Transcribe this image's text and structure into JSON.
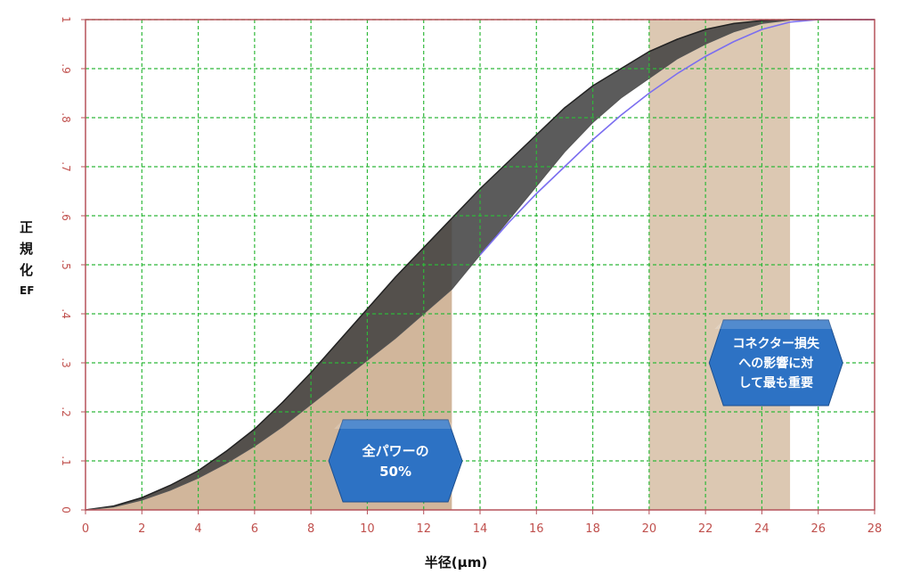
{
  "chart_data": {
    "type": "area",
    "xlabel": "半径(µm)",
    "ylabel_lines": [
      "正",
      "規",
      "化",
      "EF"
    ],
    "xlim": [
      0,
      28
    ],
    "ylim": [
      0,
      1
    ],
    "x_ticks": [
      "0",
      "2",
      "4",
      "6",
      "8",
      "10",
      "12",
      "14",
      "16",
      "18",
      "20",
      "22",
      "24",
      "26",
      "28"
    ],
    "y_ticks": [
      "0",
      ".1",
      ".2",
      ".3",
      ".4",
      ".5",
      ".6",
      ".7",
      ".8",
      ".9",
      "1"
    ],
    "grid": true,
    "series": [
      {
        "x": [
          0,
          1,
          2,
          3,
          4,
          5,
          6,
          7,
          8,
          9,
          10,
          11,
          12,
          13,
          14,
          15,
          16,
          17,
          18,
          19,
          20,
          21,
          22,
          23,
          24,
          25,
          26,
          28
        ],
        "values": [
          0,
          0.008,
          0.025,
          0.05,
          0.08,
          0.12,
          0.165,
          0.22,
          0.28,
          0.345,
          0.41,
          0.475,
          0.535,
          0.595,
          0.655,
          0.71,
          0.765,
          0.82,
          0.865,
          0.9,
          0.935,
          0.96,
          0.98,
          0.992,
          0.998,
          1,
          1,
          1
        ]
      },
      {
        "x": [
          0,
          1,
          2,
          3,
          4,
          5,
          6,
          7,
          8,
          9,
          10,
          11,
          12,
          13,
          14,
          15,
          16,
          17,
          18,
          19,
          20,
          21,
          22,
          23,
          24,
          25,
          26,
          28
        ],
        "values": [
          0,
          0.006,
          0.02,
          0.04,
          0.065,
          0.095,
          0.13,
          0.17,
          0.215,
          0.26,
          0.305,
          0.35,
          0.4,
          0.45,
          0.52,
          0.59,
          0.66,
          0.73,
          0.79,
          0.84,
          0.88,
          0.92,
          0.95,
          0.975,
          0.992,
          0.999,
          1,
          1
        ]
      },
      {
        "x": [
          14,
          15,
          16,
          17,
          18,
          19,
          20,
          21,
          22,
          23,
          24,
          25,
          26,
          28
        ],
        "values": [
          0.52,
          0.585,
          0.645,
          0.7,
          0.755,
          0.805,
          0.85,
          0.89,
          0.925,
          0.955,
          0.98,
          0.995,
          1,
          1
        ]
      }
    ],
    "shaded_regions": [
      {
        "x_start": 0,
        "x_end": 13,
        "color": "#c9a98a"
      },
      {
        "x_start": 20,
        "x_end": 25,
        "color": "#d6bea4"
      }
    ],
    "annotations": [
      {
        "lines": [
          "全パワーの",
          "50%"
        ],
        "x": 11,
        "y": 0.1
      },
      {
        "lines": [
          "コネクター損失",
          "への影響に対",
          "して最も重要"
        ],
        "x": 24.5,
        "y": 0.3
      }
    ]
  },
  "colors": {
    "axis": "#b5525a",
    "grid": "#2fb83a",
    "tick_label": "#c0504d",
    "shade": "#c9a98a",
    "dark_band": "#3e3e3e",
    "purple_line": "#7b6ef0",
    "callout_fill": "#2d72c4"
  }
}
